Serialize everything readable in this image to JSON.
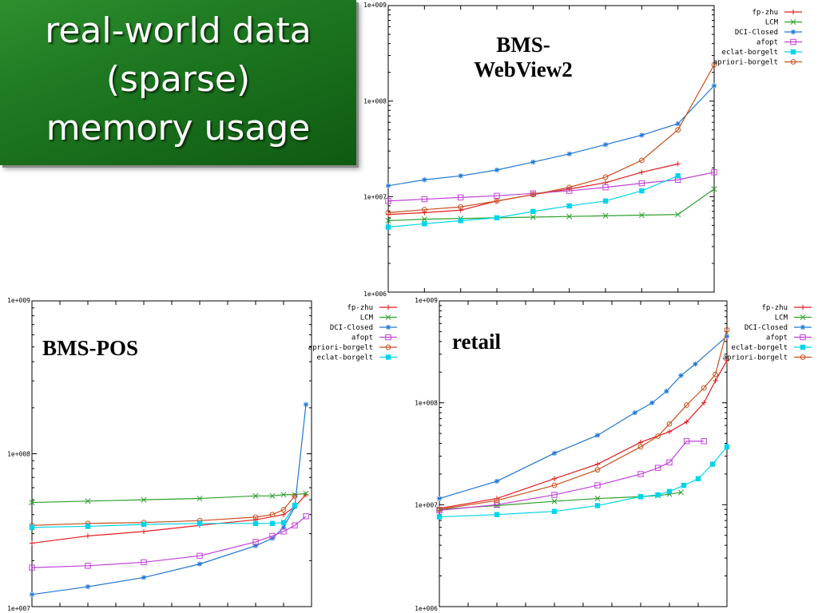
{
  "slide": {
    "title": "real-world data\n(sparse)\nmemory usage"
  },
  "colors": {
    "fp-zhu": "#e31a1c",
    "LCM": "#2ca02c",
    "DCI-Closed": "#1f77d4",
    "afopt": "#c040d8",
    "eclat-borgelt": "#00d4e8",
    "apriori-borgelt": "#c8501e"
  },
  "chart_data": [
    {
      "id": "bms-webview2",
      "type": "line",
      "title": "BMS-\nWebView2",
      "yscale": "log",
      "ylim": [
        1000000,
        1000000000
      ],
      "xlim": [
        0,
        9
      ],
      "yticks": [
        {
          "value": 10000000,
          "label": "1e+007"
        },
        {
          "value": 100000000,
          "label": "1e+008"
        },
        {
          "value": 1000000000,
          "label": "1e+009"
        },
        {
          "value": 1000000,
          "label": "1e+006"
        }
      ],
      "legend_position": "top-right",
      "series": [
        {
          "name": "fp-zhu",
          "x": [
            0,
            1,
            2,
            3,
            4,
            5,
            6,
            7,
            8
          ],
          "y": [
            6500000,
            6800000,
            7200000,
            9000000,
            10500000,
            12000000,
            14000000,
            18000000,
            22000000
          ]
        },
        {
          "name": "LCM",
          "x": [
            0,
            1,
            2,
            3,
            4,
            5,
            6,
            7,
            8,
            9
          ],
          "y": [
            5600000,
            5800000,
            5900000,
            6000000,
            6100000,
            6200000,
            6300000,
            6400000,
            6500000,
            12000000
          ]
        },
        {
          "name": "DCI-Closed",
          "x": [
            0,
            1,
            2,
            3,
            4,
            5,
            6,
            7,
            8,
            9
          ],
          "y": [
            13000000,
            15000000,
            16500000,
            19000000,
            23000000,
            28000000,
            35000000,
            44000000,
            58000000,
            145000000
          ]
        },
        {
          "name": "afopt",
          "x": [
            0,
            1,
            2,
            3,
            4,
            5,
            6,
            7,
            8,
            9
          ],
          "y": [
            9000000,
            9400000,
            9800000,
            10200000,
            10800000,
            11500000,
            12500000,
            13800000,
            15000000,
            18000000
          ]
        },
        {
          "name": "eclat-borgelt",
          "x": [
            0,
            1,
            2,
            3,
            4,
            5,
            6,
            7,
            8
          ],
          "y": [
            4800000,
            5200000,
            5600000,
            6000000,
            7000000,
            8000000,
            9000000,
            11500000,
            16500000
          ]
        },
        {
          "name": "apriori-borgelt",
          "x": [
            0,
            1,
            2,
            3,
            4,
            5,
            6,
            7,
            8,
            9
          ],
          "y": [
            6800000,
            7300000,
            7800000,
            9000000,
            10500000,
            12500000,
            16000000,
            24000000,
            50000000,
            240000000
          ]
        }
      ]
    },
    {
      "id": "bms-pos",
      "type": "line",
      "title": "BMS-POS",
      "yscale": "log",
      "ylim": [
        10000000,
        1000000000
      ],
      "xlim": [
        0,
        10
      ],
      "yticks": [
        {
          "value": 10000000,
          "label": "1e+007"
        },
        {
          "value": 100000000,
          "label": "1e+008"
        },
        {
          "value": 1000000000,
          "label": "1e+009"
        }
      ],
      "legend_position": "top-right",
      "series": [
        {
          "name": "fp-zhu",
          "x": [
            0,
            2,
            4,
            6,
            8,
            9,
            9.4,
            9.8
          ],
          "y": [
            26000000,
            29000000,
            31000000,
            34000000,
            37000000,
            40000000,
            45000000,
            54000000
          ]
        },
        {
          "name": "LCM",
          "x": [
            0,
            2,
            4,
            6,
            8,
            8.6,
            9,
            9.4,
            9.8
          ],
          "y": [
            48000000,
            49000000,
            50000000,
            51000000,
            53000000,
            53000000,
            54000000,
            54000000,
            55000000
          ]
        },
        {
          "name": "DCI-Closed",
          "x": [
            0,
            2,
            4,
            6,
            8,
            8.6,
            9,
            9.4,
            9.8
          ],
          "y": [
            12000000,
            13500000,
            15500000,
            19000000,
            25000000,
            28000000,
            33000000,
            45000000,
            210000000
          ]
        },
        {
          "name": "afopt",
          "x": [
            0,
            2,
            4,
            6,
            8,
            8.6,
            9,
            9.4,
            9.8
          ],
          "y": [
            18000000,
            18500000,
            19500000,
            21500000,
            26500000,
            29000000,
            31000000,
            34000000,
            39000000
          ]
        },
        {
          "name": "apriori-borgelt",
          "x": [
            0,
            2,
            4,
            6,
            8,
            8.6,
            9,
            9.4
          ],
          "y": [
            34000000,
            35000000,
            35500000,
            36500000,
            38500000,
            40000000,
            43000000,
            53000000
          ]
        },
        {
          "name": "eclat-borgelt",
          "x": [
            0,
            2,
            4,
            6,
            8,
            8.6,
            9,
            9.4
          ],
          "y": [
            33000000,
            33500000,
            34500000,
            35000000,
            35000000,
            35000000,
            35500000,
            46000000
          ]
        }
      ]
    },
    {
      "id": "retail",
      "type": "line",
      "title": "retail",
      "yscale": "log",
      "ylim": [
        1000000,
        1000000000
      ],
      "xlim": [
        0,
        10
      ],
      "yticks": [
        {
          "value": 1000000,
          "label": "1e+006"
        },
        {
          "value": 10000000,
          "label": "1e+007"
        },
        {
          "value": 100000000,
          "label": "1e+008"
        },
        {
          "value": 1000000000,
          "label": "1e+009"
        }
      ],
      "legend_position": "top-right",
      "series": [
        {
          "name": "fp-zhu",
          "x": [
            0,
            2,
            4,
            5.5,
            7,
            8,
            8.6,
            9.2,
            9.6,
            10
          ],
          "y": [
            9200000,
            11500000,
            18000000,
            25000000,
            41000000,
            52000000,
            65000000,
            100000000,
            165000000,
            260000000
          ]
        },
        {
          "name": "LCM",
          "x": [
            0,
            2,
            4,
            5.5,
            7,
            7.6,
            8,
            8.4
          ],
          "y": [
            9000000,
            9800000,
            10800000,
            11500000,
            12000000,
            12300000,
            12700000,
            13200000
          ]
        },
        {
          "name": "DCI-Closed",
          "x": [
            0,
            2,
            4,
            5.5,
            6.8,
            7.4,
            7.9,
            8.4,
            8.9,
            10
          ],
          "y": [
            11500000,
            17000000,
            32000000,
            48000000,
            80000000,
            100000000,
            130000000,
            185000000,
            240000000,
            450000000
          ]
        },
        {
          "name": "afopt",
          "x": [
            0,
            2,
            4,
            5.5,
            7,
            7.6,
            8,
            8.6,
            9.2
          ],
          "y": [
            8800000,
            10000000,
            12500000,
            15500000,
            20000000,
            23000000,
            26000000,
            42000000,
            42000000
          ]
        },
        {
          "name": "eclat-borgelt",
          "x": [
            0,
            2,
            4,
            5.5,
            7,
            7.6,
            8,
            8.5,
            9,
            9.5,
            10
          ],
          "y": [
            7600000,
            8000000,
            8600000,
            9800000,
            12000000,
            12500000,
            13500000,
            15500000,
            18000000,
            25000000,
            37000000
          ]
        },
        {
          "name": "apriori-borgelt",
          "x": [
            0,
            2,
            4,
            5.5,
            7,
            7.6,
            8,
            8.6,
            9.2,
            9.6,
            10
          ],
          "y": [
            9000000,
            11000000,
            15500000,
            22000000,
            37000000,
            47000000,
            62000000,
            95000000,
            140000000,
            190000000,
            520000000
          ]
        }
      ]
    }
  ],
  "legends": {
    "bms-webview2": [
      "fp-zhu",
      "LCM",
      "DCI-Closed",
      "afopt",
      "eclat-borgelt",
      "apriori-borgelt"
    ],
    "bms-pos": [
      "fp-zhu",
      "LCM",
      "DCI-Closed",
      "afopt",
      "apriori-borgelt",
      "eclat-borgelt"
    ],
    "retail": [
      "fp-zhu",
      "LCM",
      "DCI-Closed",
      "afopt",
      "eclat-borgelt",
      "apriori-borgelt"
    ]
  }
}
